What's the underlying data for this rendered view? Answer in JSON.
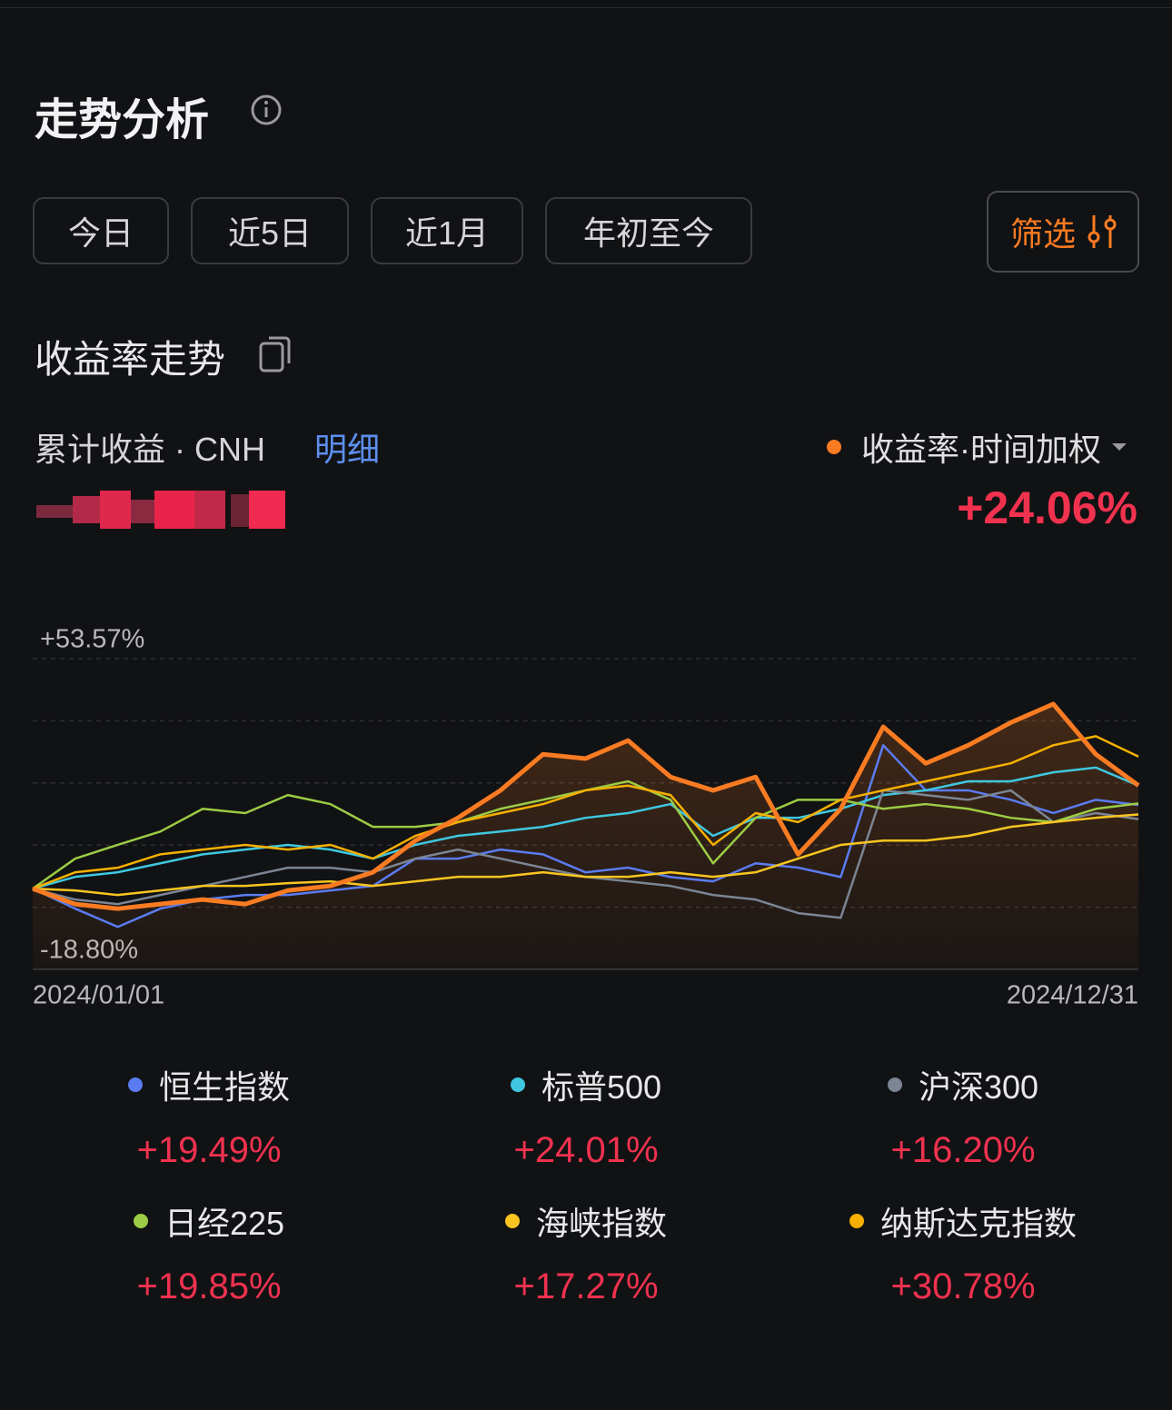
{
  "header": {
    "title": "走势分析"
  },
  "periods": [
    "今日",
    "近5日",
    "近1月",
    "年初至今"
  ],
  "filter": "筛选",
  "section_title": "收益率走势",
  "summary": {
    "label": "累计收益 · CNH",
    "detail": "明细"
  },
  "chart_data": {
    "type": "line",
    "xlim": [
      0,
      52
    ],
    "xticks": [
      {
        "value": 0,
        "label": "2024/01/01"
      },
      {
        "value": 52,
        "label": "2024/12/31"
      }
    ],
    "x": [
      0,
      2,
      4,
      6,
      8,
      10,
      12,
      14,
      16,
      18,
      20,
      22,
      24,
      26,
      28,
      30,
      32,
      34,
      36,
      38,
      40,
      42,
      44,
      46,
      48,
      50,
      52
    ],
    "ylim": [
      -18.8,
      53.57
    ],
    "yticks": [
      {
        "value": 53.57,
        "label": "+53.57%"
      },
      {
        "value": -18.8,
        "label": "-18.80%"
      }
    ],
    "series": [
      {
        "name": "收益率·时间加权",
        "color": "#f97b22",
        "change": {
          "value": 24.06,
          "label": "+24.06%"
        },
        "values": [
          0,
          -3.6,
          -4.66,
          -3.6,
          -2.54,
          -3.6,
          -0.42,
          0.63,
          3.81,
          11.2,
          16.5,
          22.9,
          31.3,
          30.3,
          34.5,
          26.0,
          22.9,
          26.0,
          8.0,
          18.6,
          37.7,
          29.2,
          33.4,
          38.7,
          43.0,
          31.3,
          24.06
        ]
      },
      {
        "name": "恒生指数",
        "color": "#5b7cf0",
        "change": {
          "value": 19.49,
          "label": "+19.49%"
        },
        "values": [
          0,
          -4.66,
          -8.9,
          -4.66,
          -2.54,
          -1.48,
          -1.48,
          -0.42,
          0.63,
          7.0,
          7.0,
          9.1,
          8.0,
          3.8,
          4.9,
          2.7,
          1.7,
          5.9,
          4.9,
          2.7,
          33.4,
          22.9,
          22.9,
          20.7,
          17.6,
          20.7,
          19.49
        ]
      },
      {
        "name": "标普500",
        "color": "#3fc7e0",
        "change": {
          "value": 24.01,
          "label": "+24.01%"
        },
        "values": [
          0,
          2.75,
          3.81,
          5.9,
          8.0,
          9.1,
          10.2,
          9.1,
          7.0,
          10.2,
          12.3,
          13.3,
          14.4,
          16.5,
          17.6,
          19.7,
          12.3,
          16.5,
          16.5,
          18.6,
          21.8,
          22.9,
          25.0,
          25.0,
          27.1,
          28.2,
          24.01
        ]
      },
      {
        "name": "沪深300",
        "color": "#7b8594",
        "change": {
          "value": 16.2,
          "label": "+16.20%"
        },
        "values": [
          0,
          -2.54,
          -3.6,
          -1.48,
          0.63,
          2.75,
          4.87,
          4.87,
          3.81,
          7.0,
          9.1,
          7.0,
          4.87,
          2.75,
          1.69,
          0.63,
          -1.48,
          -2.54,
          -5.7,
          -6.8,
          22.9,
          21.8,
          20.7,
          22.9,
          15.5,
          17.6,
          16.2
        ]
      },
      {
        "name": "日经225",
        "color": "#9ccc45",
        "change": {
          "value": 19.85,
          "label": "+19.85%"
        },
        "values": [
          0,
          7.0,
          10.2,
          13.3,
          18.6,
          17.6,
          21.8,
          19.7,
          14.4,
          14.4,
          15.5,
          18.6,
          20.7,
          22.9,
          25.0,
          20.7,
          5.9,
          16.5,
          20.7,
          20.7,
          18.6,
          19.7,
          18.6,
          16.5,
          15.5,
          18.6,
          19.85
        ]
      },
      {
        "name": "海峡指数",
        "color": "#f9c520",
        "change": {
          "value": 17.27,
          "label": "+17.27%"
        },
        "values": [
          0,
          -0.42,
          -1.48,
          -0.42,
          0.63,
          0.63,
          1.27,
          1.69,
          0.63,
          1.69,
          2.75,
          2.75,
          3.81,
          2.75,
          2.75,
          3.81,
          2.75,
          3.81,
          7.0,
          10.2,
          11.2,
          11.2,
          12.3,
          14.4,
          15.5,
          16.5,
          17.27
        ]
      },
      {
        "name": "纳斯达克指数",
        "color": "#f5b000",
        "change": {
          "value": 30.78,
          "label": "+30.78%"
        },
        "values": [
          0,
          3.81,
          4.87,
          8.0,
          9.1,
          10.2,
          9.1,
          10.2,
          7.0,
          12.3,
          15.5,
          17.6,
          19.7,
          22.9,
          24.0,
          21.8,
          10.2,
          17.6,
          15.5,
          20.7,
          22.9,
          25.0,
          27.1,
          29.2,
          33.4,
          35.5,
          30.78
        ]
      }
    ]
  }
}
